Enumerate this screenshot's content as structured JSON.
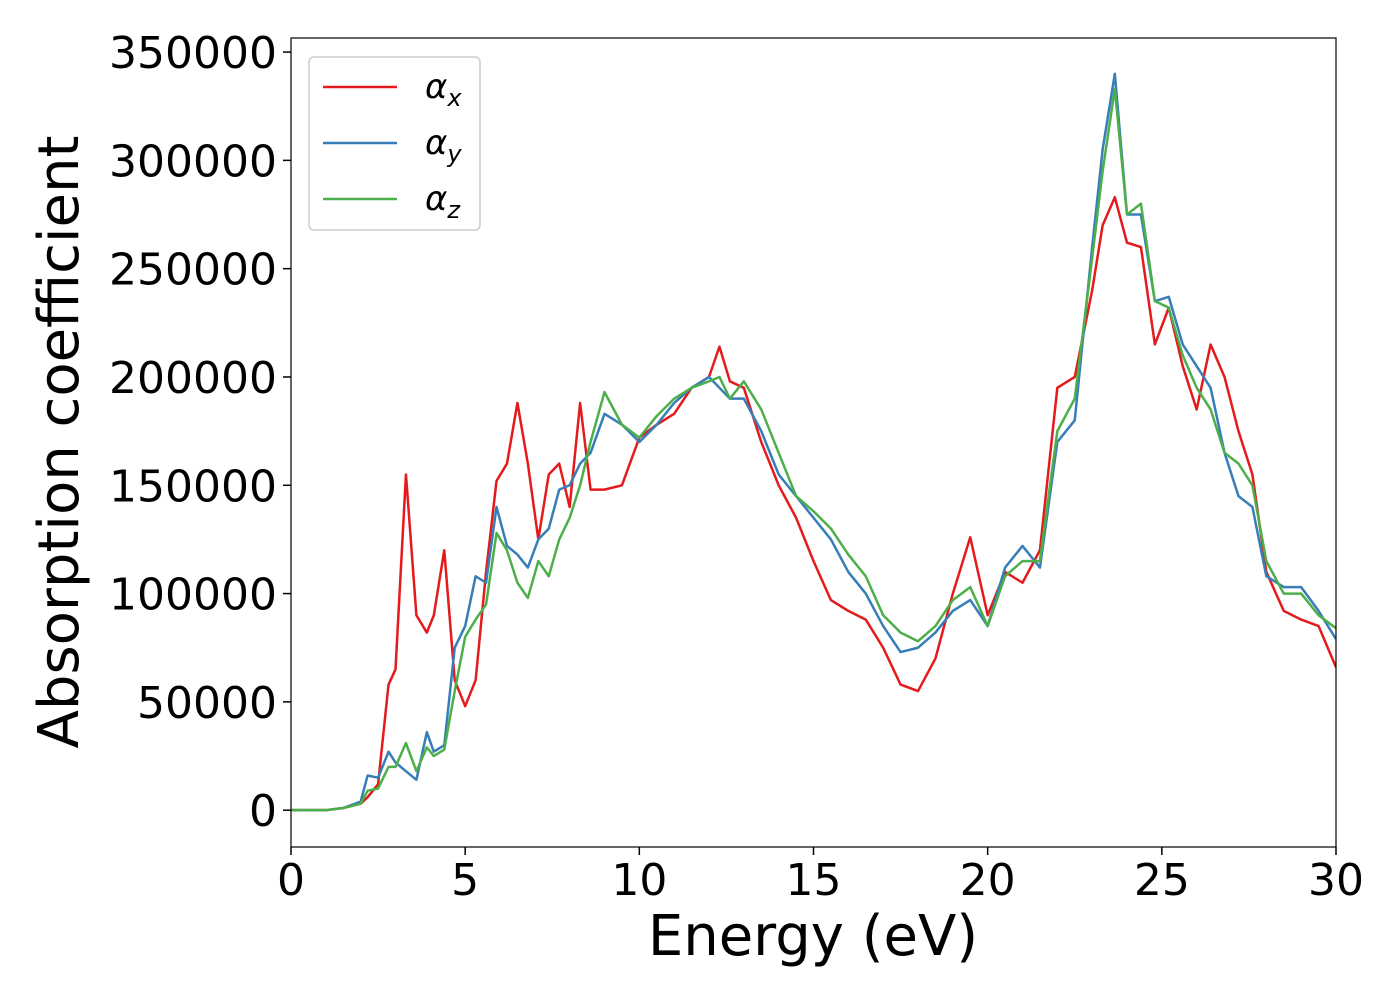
{
  "chart_data": {
    "type": "line",
    "xlabel": "Energy (eV)",
    "ylabel": "Absorption coefficient",
    "x": [
      0,
      1,
      1.5,
      2,
      2.2,
      2.5,
      2.8,
      3,
      3.3,
      3.6,
      3.9,
      4.1,
      4.4,
      4.7,
      5,
      5.3,
      5.6,
      5.9,
      6.2,
      6.5,
      6.8,
      7.1,
      7.4,
      7.7,
      8,
      8.3,
      8.6,
      9,
      9.5,
      10,
      10.5,
      11,
      11.5,
      12,
      12.3,
      12.6,
      13,
      13.5,
      14,
      14.5,
      15,
      15.5,
      16,
      16.5,
      17,
      17.5,
      18,
      18.5,
      19,
      19.5,
      20,
      20.5,
      21,
      21.5,
      22,
      22.5,
      23,
      23.3,
      23.65,
      24,
      24.4,
      24.8,
      25.2,
      25.6,
      26,
      26.4,
      26.8,
      27.2,
      27.6,
      28,
      28.5,
      29,
      29.5,
      30
    ],
    "series": [
      {
        "name": "αx",
        "color": "#e41a1c",
        "values": [
          0,
          0,
          1000,
          3000,
          6000,
          12000,
          58000,
          65000,
          155000,
          90000,
          82000,
          90000,
          120000,
          60000,
          48000,
          60000,
          110000,
          152000,
          160000,
          188000,
          160000,
          125000,
          155000,
          160000,
          140000,
          188000,
          148000,
          148000,
          150000,
          172000,
          178000,
          183000,
          195000,
          200000,
          214000,
          198000,
          195000,
          170000,
          150000,
          135000,
          115000,
          97000,
          92000,
          88000,
          75000,
          58000,
          55000,
          70000,
          100000,
          126000,
          90000,
          110000,
          105000,
          120000,
          195000,
          200000,
          240000,
          270000,
          283000,
          262000,
          260000,
          215000,
          232000,
          205000,
          185000,
          215000,
          200000,
          175000,
          155000,
          110000,
          92000,
          88000,
          85000,
          66000
        ]
      },
      {
        "name": "αy",
        "color": "#377eb8",
        "values": [
          0,
          0,
          1000,
          4000,
          16000,
          15000,
          27000,
          22000,
          18000,
          14000,
          36000,
          27000,
          30000,
          75000,
          85000,
          108000,
          105000,
          140000,
          122000,
          118000,
          112000,
          125000,
          130000,
          148000,
          150000,
          160000,
          165000,
          183000,
          178000,
          170000,
          178000,
          188000,
          195000,
          200000,
          195000,
          190000,
          190000,
          175000,
          155000,
          145000,
          135000,
          125000,
          110000,
          100000,
          85000,
          73000,
          75000,
          82000,
          92000,
          97000,
          85000,
          112000,
          122000,
          112000,
          170000,
          180000,
          260000,
          305000,
          340000,
          275000,
          275000,
          235000,
          237000,
          215000,
          205000,
          195000,
          165000,
          145000,
          140000,
          108000,
          103000,
          103000,
          92000,
          79000
        ]
      },
      {
        "name": "αz",
        "color": "#4daf4a",
        "values": [
          0,
          0,
          1000,
          3000,
          9000,
          10000,
          20000,
          20000,
          31000,
          18000,
          29000,
          25000,
          28000,
          55000,
          80000,
          88000,
          95000,
          128000,
          120000,
          105000,
          98000,
          115000,
          108000,
          125000,
          135000,
          150000,
          170000,
          193000,
          178000,
          172000,
          182000,
          190000,
          195000,
          198000,
          200000,
          190000,
          198000,
          185000,
          165000,
          145000,
          138000,
          130000,
          118000,
          108000,
          90000,
          82000,
          78000,
          85000,
          97000,
          103000,
          85000,
          108000,
          115000,
          115000,
          175000,
          190000,
          255000,
          295000,
          333000,
          275000,
          280000,
          235000,
          232000,
          210000,
          195000,
          185000,
          165000,
          160000,
          150000,
          115000,
          100000,
          100000,
          90000,
          84000
        ]
      }
    ],
    "xlim": [
      0,
      30
    ],
    "xticks": [
      0,
      5,
      10,
      15,
      20,
      25,
      30
    ],
    "ylim": [
      -17000,
      356500
    ],
    "yticks": [
      0,
      50000,
      100000,
      150000,
      200000,
      250000,
      300000,
      350000
    ],
    "grid": false,
    "legend": "upper left"
  }
}
